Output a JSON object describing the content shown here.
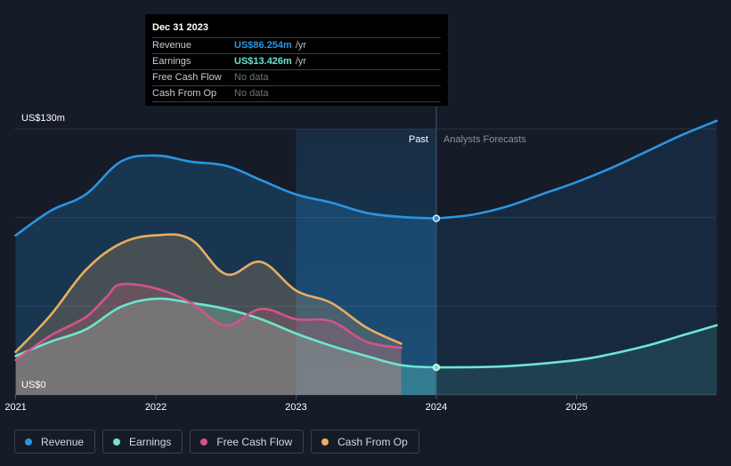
{
  "tooltip": {
    "date": "Dec 31 2023",
    "rows": [
      {
        "label": "Revenue",
        "value": "US$86.254m",
        "unit": "/yr",
        "color": "#2a95e3"
      },
      {
        "label": "Earnings",
        "value": "US$13.426m",
        "unit": "/yr",
        "color": "#6ce6cf"
      },
      {
        "label": "Free Cash Flow",
        "value": "No data",
        "unit": ""
      },
      {
        "label": "Cash From Op",
        "value": "No data",
        "unit": ""
      }
    ]
  },
  "legend": [
    {
      "label": "Revenue",
      "color": "#2a95e3"
    },
    {
      "label": "Earnings",
      "color": "#6ce6cf"
    },
    {
      "label": "Free Cash Flow",
      "color": "#d6528a"
    },
    {
      "label": "Cash From Op",
      "color": "#e8ae62"
    }
  ],
  "chart_data": {
    "type": "area",
    "y_top_label": "US$130m",
    "y_bottom_label": "US$0",
    "ylim": [
      0,
      130
    ],
    "xlim": [
      2020.99,
      2026.0
    ],
    "x_ticks": [
      {
        "x": 2021.0,
        "label": "2021"
      },
      {
        "x": 2022.0,
        "label": "2022"
      },
      {
        "x": 2023.0,
        "label": "2023"
      },
      {
        "x": 2024.0,
        "label": "2024"
      },
      {
        "x": 2025.0,
        "label": "2025"
      }
    ],
    "past_label": "Past",
    "forecast_label": "Analysts Forecasts",
    "past_divider_x": 2024.0,
    "highlight_start_x": 2023.0,
    "grid": true,
    "series": [
      {
        "name": "Revenue",
        "color": "#2a95e3",
        "past": [
          [
            2021.0,
            78
          ],
          [
            2021.25,
            90
          ],
          [
            2021.5,
            98
          ],
          [
            2021.75,
            114
          ],
          [
            2022.0,
            117
          ],
          [
            2022.25,
            114
          ],
          [
            2022.5,
            112
          ],
          [
            2022.75,
            105
          ],
          [
            2023.0,
            98
          ],
          [
            2023.25,
            94
          ],
          [
            2023.5,
            89
          ],
          [
            2023.75,
            87
          ],
          [
            2024.0,
            86.254
          ]
        ],
        "forecast": [
          [
            2024.0,
            86.254
          ],
          [
            2024.25,
            88
          ],
          [
            2024.5,
            92
          ],
          [
            2024.75,
            98
          ],
          [
            2025.0,
            104
          ],
          [
            2025.25,
            111
          ],
          [
            2025.5,
            119
          ],
          [
            2025.75,
            127
          ],
          [
            2026.0,
            134
          ]
        ]
      },
      {
        "name": "Earnings",
        "color": "#6ce6cf",
        "past": [
          [
            2021.0,
            19
          ],
          [
            2021.25,
            26
          ],
          [
            2021.5,
            32
          ],
          [
            2021.75,
            43
          ],
          [
            2022.0,
            47
          ],
          [
            2022.25,
            45
          ],
          [
            2022.5,
            42
          ],
          [
            2022.75,
            37
          ],
          [
            2023.0,
            30
          ],
          [
            2023.25,
            24
          ],
          [
            2023.5,
            19
          ],
          [
            2023.75,
            14.5
          ],
          [
            2024.0,
            13.426
          ]
        ],
        "forecast": [
          [
            2024.0,
            13.426
          ],
          [
            2024.5,
            14
          ],
          [
            2025.0,
            17
          ],
          [
            2025.25,
            20
          ],
          [
            2025.5,
            24
          ],
          [
            2025.75,
            29
          ],
          [
            2026.0,
            34
          ]
        ]
      },
      {
        "name": "Free Cash Flow",
        "color": "#d6528a",
        "past": [
          [
            2021.0,
            17
          ],
          [
            2021.25,
            29
          ],
          [
            2021.5,
            38
          ],
          [
            2021.65,
            48
          ],
          [
            2021.75,
            54
          ],
          [
            2022.0,
            52
          ],
          [
            2022.25,
            45
          ],
          [
            2022.5,
            34
          ],
          [
            2022.75,
            42
          ],
          [
            2023.0,
            37
          ],
          [
            2023.25,
            36
          ],
          [
            2023.5,
            26
          ],
          [
            2023.75,
            23
          ]
        ],
        "forecast": []
      },
      {
        "name": "Cash From Op",
        "color": "#e8ae62",
        "past": [
          [
            2021.0,
            21
          ],
          [
            2021.25,
            39
          ],
          [
            2021.5,
            61
          ],
          [
            2021.75,
            74
          ],
          [
            2022.0,
            78
          ],
          [
            2022.25,
            76
          ],
          [
            2022.5,
            59
          ],
          [
            2022.75,
            65
          ],
          [
            2023.0,
            51
          ],
          [
            2023.25,
            45
          ],
          [
            2023.5,
            33
          ],
          [
            2023.75,
            25
          ]
        ],
        "forecast": []
      }
    ]
  }
}
